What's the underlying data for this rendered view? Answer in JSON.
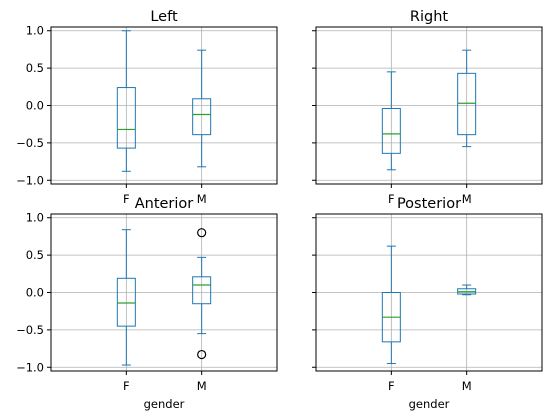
{
  "chart_data": [
    {
      "type": "box",
      "title": "Left",
      "categories": [
        "F",
        "M"
      ],
      "xlabel": "",
      "ylim": [
        -1.05,
        1.05
      ],
      "yticks": [
        -1.0,
        -0.5,
        0.0,
        0.5,
        1.0
      ],
      "ytick_labels": [
        "−1.0",
        "−0.5",
        "0.0",
        "0.5",
        "1.0"
      ],
      "show_yticklabels": true,
      "grid": true,
      "boxes": [
        {
          "category": "F",
          "whisker_low": -0.88,
          "q1": -0.57,
          "median": -0.32,
          "q3": 0.24,
          "whisker_high": 1.0,
          "outliers": []
        },
        {
          "category": "M",
          "whisker_low": -0.82,
          "q1": -0.39,
          "median": -0.12,
          "q3": 0.09,
          "whisker_high": 0.74,
          "outliers": []
        }
      ]
    },
    {
      "type": "box",
      "title": "Right",
      "categories": [
        "F",
        "M"
      ],
      "xlabel": "",
      "ylim": [
        -1.05,
        1.05
      ],
      "yticks": [
        -1.0,
        -0.5,
        0.0,
        0.5,
        1.0
      ],
      "ytick_labels": [
        "−1.0",
        "−0.5",
        "0.0",
        "0.5",
        "1.0"
      ],
      "show_yticklabels": false,
      "grid": true,
      "boxes": [
        {
          "category": "F",
          "whisker_low": -0.86,
          "q1": -0.64,
          "median": -0.38,
          "q3": -0.04,
          "whisker_high": 0.45,
          "outliers": []
        },
        {
          "category": "M",
          "whisker_low": -0.55,
          "q1": -0.39,
          "median": 0.03,
          "q3": 0.43,
          "whisker_high": 0.74,
          "outliers": []
        }
      ]
    },
    {
      "type": "box",
      "title": "Anterior",
      "categories": [
        "F",
        "M"
      ],
      "xlabel": "gender",
      "ylim": [
        -1.05,
        1.05
      ],
      "yticks": [
        -1.0,
        -0.5,
        0.0,
        0.5,
        1.0
      ],
      "ytick_labels": [
        "−1.0",
        "−0.5",
        "0.0",
        "0.5",
        "1.0"
      ],
      "show_yticklabels": true,
      "grid": true,
      "boxes": [
        {
          "category": "F",
          "whisker_low": -0.97,
          "q1": -0.45,
          "median": -0.14,
          "q3": 0.19,
          "whisker_high": 0.84,
          "outliers": []
        },
        {
          "category": "M",
          "whisker_low": -0.55,
          "q1": -0.15,
          "median": 0.1,
          "q3": 0.21,
          "whisker_high": 0.47,
          "outliers": [
            0.8,
            -0.83
          ]
        }
      ]
    },
    {
      "type": "box",
      "title": "Posterior",
      "categories": [
        "F",
        "M"
      ],
      "xlabel": "gender",
      "ylim": [
        -1.05,
        1.05
      ],
      "yticks": [
        -1.0,
        -0.5,
        0.0,
        0.5,
        1.0
      ],
      "ytick_labels": [
        "−1.0",
        "−0.5",
        "0.0",
        "0.5",
        "1.0"
      ],
      "show_yticklabels": false,
      "grid": true,
      "boxes": [
        {
          "category": "F",
          "whisker_low": -0.95,
          "q1": -0.66,
          "median": -0.33,
          "q3": 0.0,
          "whisker_high": 0.62,
          "outliers": []
        },
        {
          "category": "M",
          "whisker_low": -0.03,
          "q1": -0.02,
          "median": 0.01,
          "q3": 0.05,
          "whisker_high": 0.1,
          "outliers": []
        }
      ]
    }
  ],
  "colors": {
    "box": "#1f77b4",
    "median": "#2ca02c",
    "whisker": "#1f77b4",
    "grid": "#b0b0b0",
    "axes": "#000000",
    "outlier": "#000000"
  }
}
